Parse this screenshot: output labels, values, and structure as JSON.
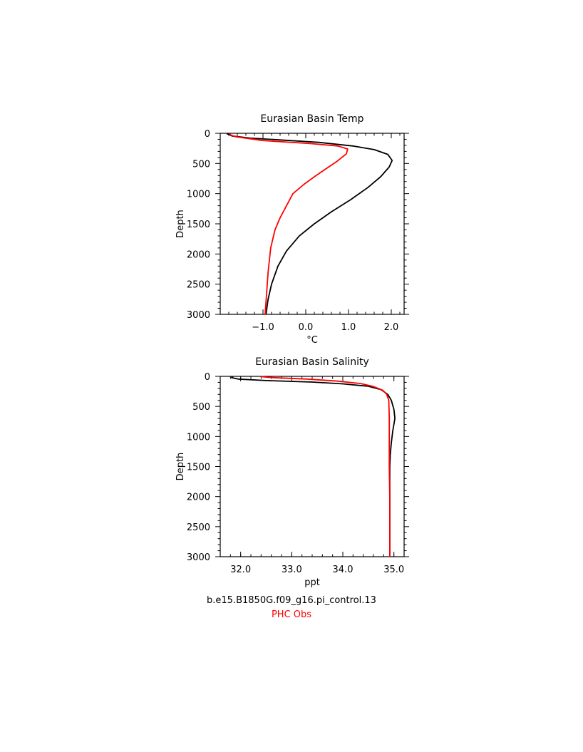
{
  "chart_data": [
    {
      "type": "line",
      "title": "Eurasian Basin Temp",
      "xlabel": "°C",
      "ylabel": "Depth",
      "xlim": [
        -2.0,
        2.3
      ],
      "ylim": [
        3000,
        0
      ],
      "y_reversed": true,
      "xticks": [
        -1.0,
        0.0,
        1.0,
        2.0
      ],
      "xtick_labels": [
        "−1.0",
        "0.0",
        "1.0",
        "2.0"
      ],
      "yticks": [
        0,
        500,
        1000,
        1500,
        2000,
        2500,
        3000
      ],
      "ytick_labels": [
        "0",
        "500",
        "1000",
        "1500",
        "2000",
        "2500",
        "3000"
      ],
      "series": [
        {
          "color": "#000000",
          "points": [
            [
              -1.85,
              5
            ],
            [
              -1.8,
              20
            ],
            [
              -1.72,
              45
            ],
            [
              -1.3,
              80
            ],
            [
              -0.6,
              110
            ],
            [
              0.3,
              150
            ],
            [
              1.1,
              210
            ],
            [
              1.6,
              270
            ],
            [
              1.92,
              350
            ],
            [
              2.02,
              450
            ],
            [
              1.95,
              560
            ],
            [
              1.75,
              720
            ],
            [
              1.45,
              900
            ],
            [
              1.05,
              1100
            ],
            [
              0.6,
              1300
            ],
            [
              0.2,
              1500
            ],
            [
              -0.15,
              1700
            ],
            [
              -0.45,
              1950
            ],
            [
              -0.65,
              2200
            ],
            [
              -0.8,
              2500
            ],
            [
              -0.88,
              2750
            ],
            [
              -0.93,
              3000
            ]
          ]
        },
        {
          "color": "#ff0000",
          "points": [
            [
              -1.78,
              5
            ],
            [
              -1.75,
              30
            ],
            [
              -1.65,
              55
            ],
            [
              -1.0,
              120
            ],
            [
              0.1,
              170
            ],
            [
              0.75,
              210
            ],
            [
              0.98,
              260
            ],
            [
              0.95,
              340
            ],
            [
              0.72,
              470
            ],
            [
              0.45,
              600
            ],
            [
              0.2,
              720
            ],
            [
              -0.05,
              850
            ],
            [
              -0.3,
              1000
            ],
            [
              -0.45,
              1200
            ],
            [
              -0.6,
              1400
            ],
            [
              -0.72,
              1600
            ],
            [
              -0.82,
              1900
            ],
            [
              -0.88,
              2300
            ],
            [
              -0.92,
              2700
            ],
            [
              -0.95,
              3000
            ]
          ]
        }
      ]
    },
    {
      "type": "line",
      "title": "Eurasian Basin Salinity",
      "xlabel": "ppt",
      "ylabel": "Depth",
      "xlim": [
        31.6,
        35.2
      ],
      "ylim": [
        3000,
        0
      ],
      "y_reversed": true,
      "xticks": [
        32.0,
        33.0,
        34.0,
        35.0
      ],
      "xtick_labels": [
        "32.0",
        "33.0",
        "34.0",
        "35.0"
      ],
      "yticks": [
        0,
        500,
        1000,
        1500,
        2000,
        2500,
        3000
      ],
      "ytick_labels": [
        "0",
        "500",
        "1000",
        "1500",
        "2000",
        "2500",
        "3000"
      ],
      "series": [
        {
          "color": "#000000",
          "points": [
            [
              31.85,
              5
            ],
            [
              31.82,
              20
            ],
            [
              31.95,
              45
            ],
            [
              32.5,
              70
            ],
            [
              33.4,
              95
            ],
            [
              34.0,
              125
            ],
            [
              34.5,
              165
            ],
            [
              34.75,
              220
            ],
            [
              34.88,
              300
            ],
            [
              34.95,
              400
            ],
            [
              35.0,
              550
            ],
            [
              35.02,
              700
            ],
            [
              34.98,
              900
            ],
            [
              34.95,
              1100
            ],
            [
              34.93,
              1300
            ],
            [
              34.92,
              1500
            ],
            [
              34.92,
              2000
            ],
            [
              34.92,
              2500
            ],
            [
              34.92,
              3000
            ]
          ]
        },
        {
          "color": "#ff0000",
          "points": [
            [
              32.4,
              5
            ],
            [
              32.6,
              20
            ],
            [
              33.3,
              45
            ],
            [
              33.9,
              80
            ],
            [
              34.35,
              120
            ],
            [
              34.6,
              170
            ],
            [
              34.78,
              230
            ],
            [
              34.86,
              300
            ],
            [
              34.9,
              400
            ],
            [
              34.91,
              700
            ],
            [
              34.91,
              1000
            ],
            [
              34.91,
              1500
            ],
            [
              34.92,
              2000
            ],
            [
              34.92,
              2500
            ],
            [
              34.92,
              3000
            ]
          ]
        }
      ]
    }
  ],
  "legend": {
    "model_label": "b.e15.B1850G.f09_g16.pi_control.13",
    "model_color": "#000000",
    "obs_label": "PHC Obs",
    "obs_color": "#ff0000"
  }
}
